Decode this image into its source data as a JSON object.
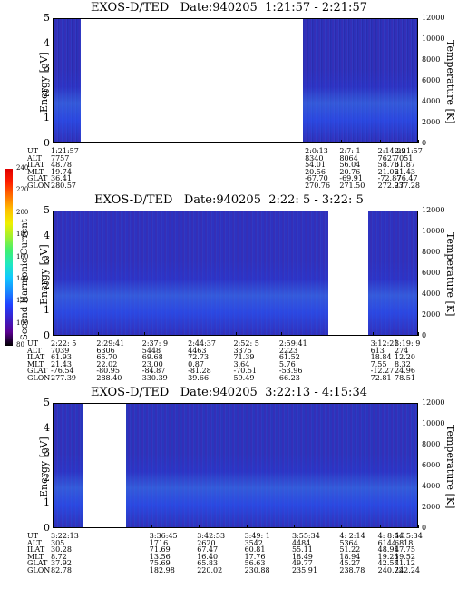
{
  "chart_data": [
    {
      "type": "heatmap",
      "title": "EXOS-D/TED   Date:940205  1:21:57 - 2:21:57",
      "ylabel": "Energy [eV]",
      "y2label": "Temperature [K]",
      "ylim": [
        0,
        5
      ],
      "yticks": [
        "0",
        "1",
        "2",
        "3",
        "4",
        "5"
      ],
      "y2lim": [
        0,
        12000
      ],
      "y2ticks": [
        "0",
        "2000",
        "4000",
        "6000",
        "8000",
        "10000",
        "12000"
      ],
      "table_rows": [
        "UT",
        "ALT",
        "ILAT",
        "MLT",
        "GLAT",
        "GLON"
      ],
      "columns": [
        {
          "pos": 0.0,
          "values": [
            "1:21:57",
            "7757",
            "48.78",
            "19.74",
            "36.41",
            "280.57"
          ]
        },
        {
          "pos": 0.695,
          "values": [
            "2:0:13",
            "8340",
            "54.01",
            "20.56",
            "-67.70",
            "270.76"
          ]
        },
        {
          "pos": 0.79,
          "values": [
            "2:7: 1",
            "8064",
            "56.04",
            "20.76",
            "-69.91",
            "271.50"
          ]
        },
        {
          "pos": 0.895,
          "values": [
            "2:14:29",
            "7627",
            "58.70",
            "21.05",
            "-72.87",
            "272.93"
          ]
        },
        {
          "pos": 1.0,
          "values": [
            "2:21:57",
            "7051",
            "61.87",
            "21.43",
            "-76.47",
            "277.28"
          ]
        }
      ],
      "data_segments": [
        [
          0.0,
          0.075
        ],
        [
          0.685,
          1.0
        ]
      ]
    },
    {
      "type": "heatmap",
      "title": "EXOS-D/TED   Date:940205  2:22: 5 - 3:22: 5",
      "ylabel": "Energy [eV]",
      "y2label": "Temperature [K]",
      "ylim": [
        0,
        5
      ],
      "yticks": [
        "0",
        "1",
        "2",
        "3",
        "4",
        "5"
      ],
      "y2lim": [
        0,
        12000
      ],
      "y2ticks": [
        "0",
        "2000",
        "4000",
        "6000",
        "8000",
        "10000",
        "12000"
      ],
      "table_rows": [
        "UT",
        "ALT",
        "ILAT",
        "MLT",
        "GLAT",
        "GLON"
      ],
      "columns": [
        {
          "pos": 0.0,
          "values": [
            "2:22: 5",
            "7039",
            "61.93",
            "21.43",
            "-76.54",
            "277.39"
          ]
        },
        {
          "pos": 0.125,
          "values": [
            "2:29:41",
            "6306",
            "65.70",
            "22.02",
            "-80.95",
            "288.40"
          ]
        },
        {
          "pos": 0.25,
          "values": [
            "2:37: 9",
            "5448",
            "69.68",
            "23.00",
            "-84.87",
            "330.39"
          ]
        },
        {
          "pos": 0.375,
          "values": [
            "2:44:37",
            "4463",
            "72.73",
            "0.87",
            "-81.28",
            "39.66"
          ]
        },
        {
          "pos": 0.5,
          "values": [
            "2:52: 5",
            "3375",
            "71.39",
            "3.64",
            "-70.51",
            "59.49"
          ]
        },
        {
          "pos": 0.625,
          "values": [
            "2:59:41",
            "2223",
            "61.52",
            "5.76",
            "-53.96",
            "66.23"
          ]
        },
        {
          "pos": 0.875,
          "values": [
            "3:12:21",
            "613",
            "18.84",
            "7.55",
            "-12.27",
            "72.81"
          ]
        },
        {
          "pos": 1.0,
          "values": [
            "3:19: 9",
            "274",
            "12.20",
            "8.32",
            "24.96",
            "78.51"
          ]
        }
      ],
      "data_segments": [
        [
          0.0,
          0.755
        ],
        [
          0.865,
          1.0
        ]
      ]
    },
    {
      "type": "heatmap",
      "title": "EXOS-D/TED   Date:940205  3:22:13 - 4:15:34",
      "ylabel": "Energy [eV]",
      "y2label": "Temperature [K]",
      "ylim": [
        0,
        5
      ],
      "yticks": [
        "0",
        "1",
        "2",
        "3",
        "4",
        "5"
      ],
      "y2lim": [
        0,
        12000
      ],
      "y2ticks": [
        "0",
        "2000",
        "4000",
        "6000",
        "8000",
        "10000",
        "12000"
      ],
      "table_rows": [
        "UT",
        "ALT",
        "ILAT",
        "MLT",
        "GLAT",
        "GLON"
      ],
      "columns": [
        {
          "pos": 0.0,
          "values": [
            "3:22:13",
            "305",
            "30.28",
            "8.72",
            "37.92",
            "82.78"
          ]
        },
        {
          "pos": 0.27,
          "values": [
            "3:36:45",
            "1716",
            "71.69",
            "13.56",
            "75.69",
            "182.98"
          ]
        },
        {
          "pos": 0.4,
          "values": [
            "3:42:53",
            "2620",
            "67.47",
            "16.40",
            "65.83",
            "220.02"
          ]
        },
        {
          "pos": 0.53,
          "values": [
            "3:49: 1",
            "3542",
            "60.81",
            "17.76",
            "56.63",
            "230.88"
          ]
        },
        {
          "pos": 0.66,
          "values": [
            "3:55:34",
            "4484",
            "55.11",
            "18.49",
            "49.77",
            "235.91"
          ]
        },
        {
          "pos": 0.79,
          "values": [
            "4: 2:14",
            "5364",
            "51.22",
            "18.94",
            "45.27",
            "238.78"
          ]
        },
        {
          "pos": 0.895,
          "values": [
            "4: 8:54",
            "6144",
            "48.91",
            "19.26",
            "42.57",
            "240.72"
          ]
        },
        {
          "pos": 1.0,
          "values": [
            "4:15:34",
            "6818",
            "47.75",
            "19.52",
            "41.12",
            "242.24"
          ]
        }
      ],
      "data_segments": [
        [
          0.0,
          0.08
        ],
        [
          0.2,
          1.0
        ]
      ]
    }
  ],
  "colorbar": {
    "label": "Second Harmonic Current",
    "ticks": [
      "80",
      "100",
      "120",
      "140",
      "160",
      "180",
      "200",
      "220",
      "240"
    ],
    "range": [
      80,
      240
    ],
    "colors": [
      "#000000",
      "#5a0090",
      "#3a20c8",
      "#2040ff",
      "#1888ff",
      "#10c8ff",
      "#20e8c0",
      "#40f070",
      "#a0f030",
      "#f0f000",
      "#ffc000",
      "#ff7000",
      "#ff2000",
      "#e00000"
    ]
  }
}
